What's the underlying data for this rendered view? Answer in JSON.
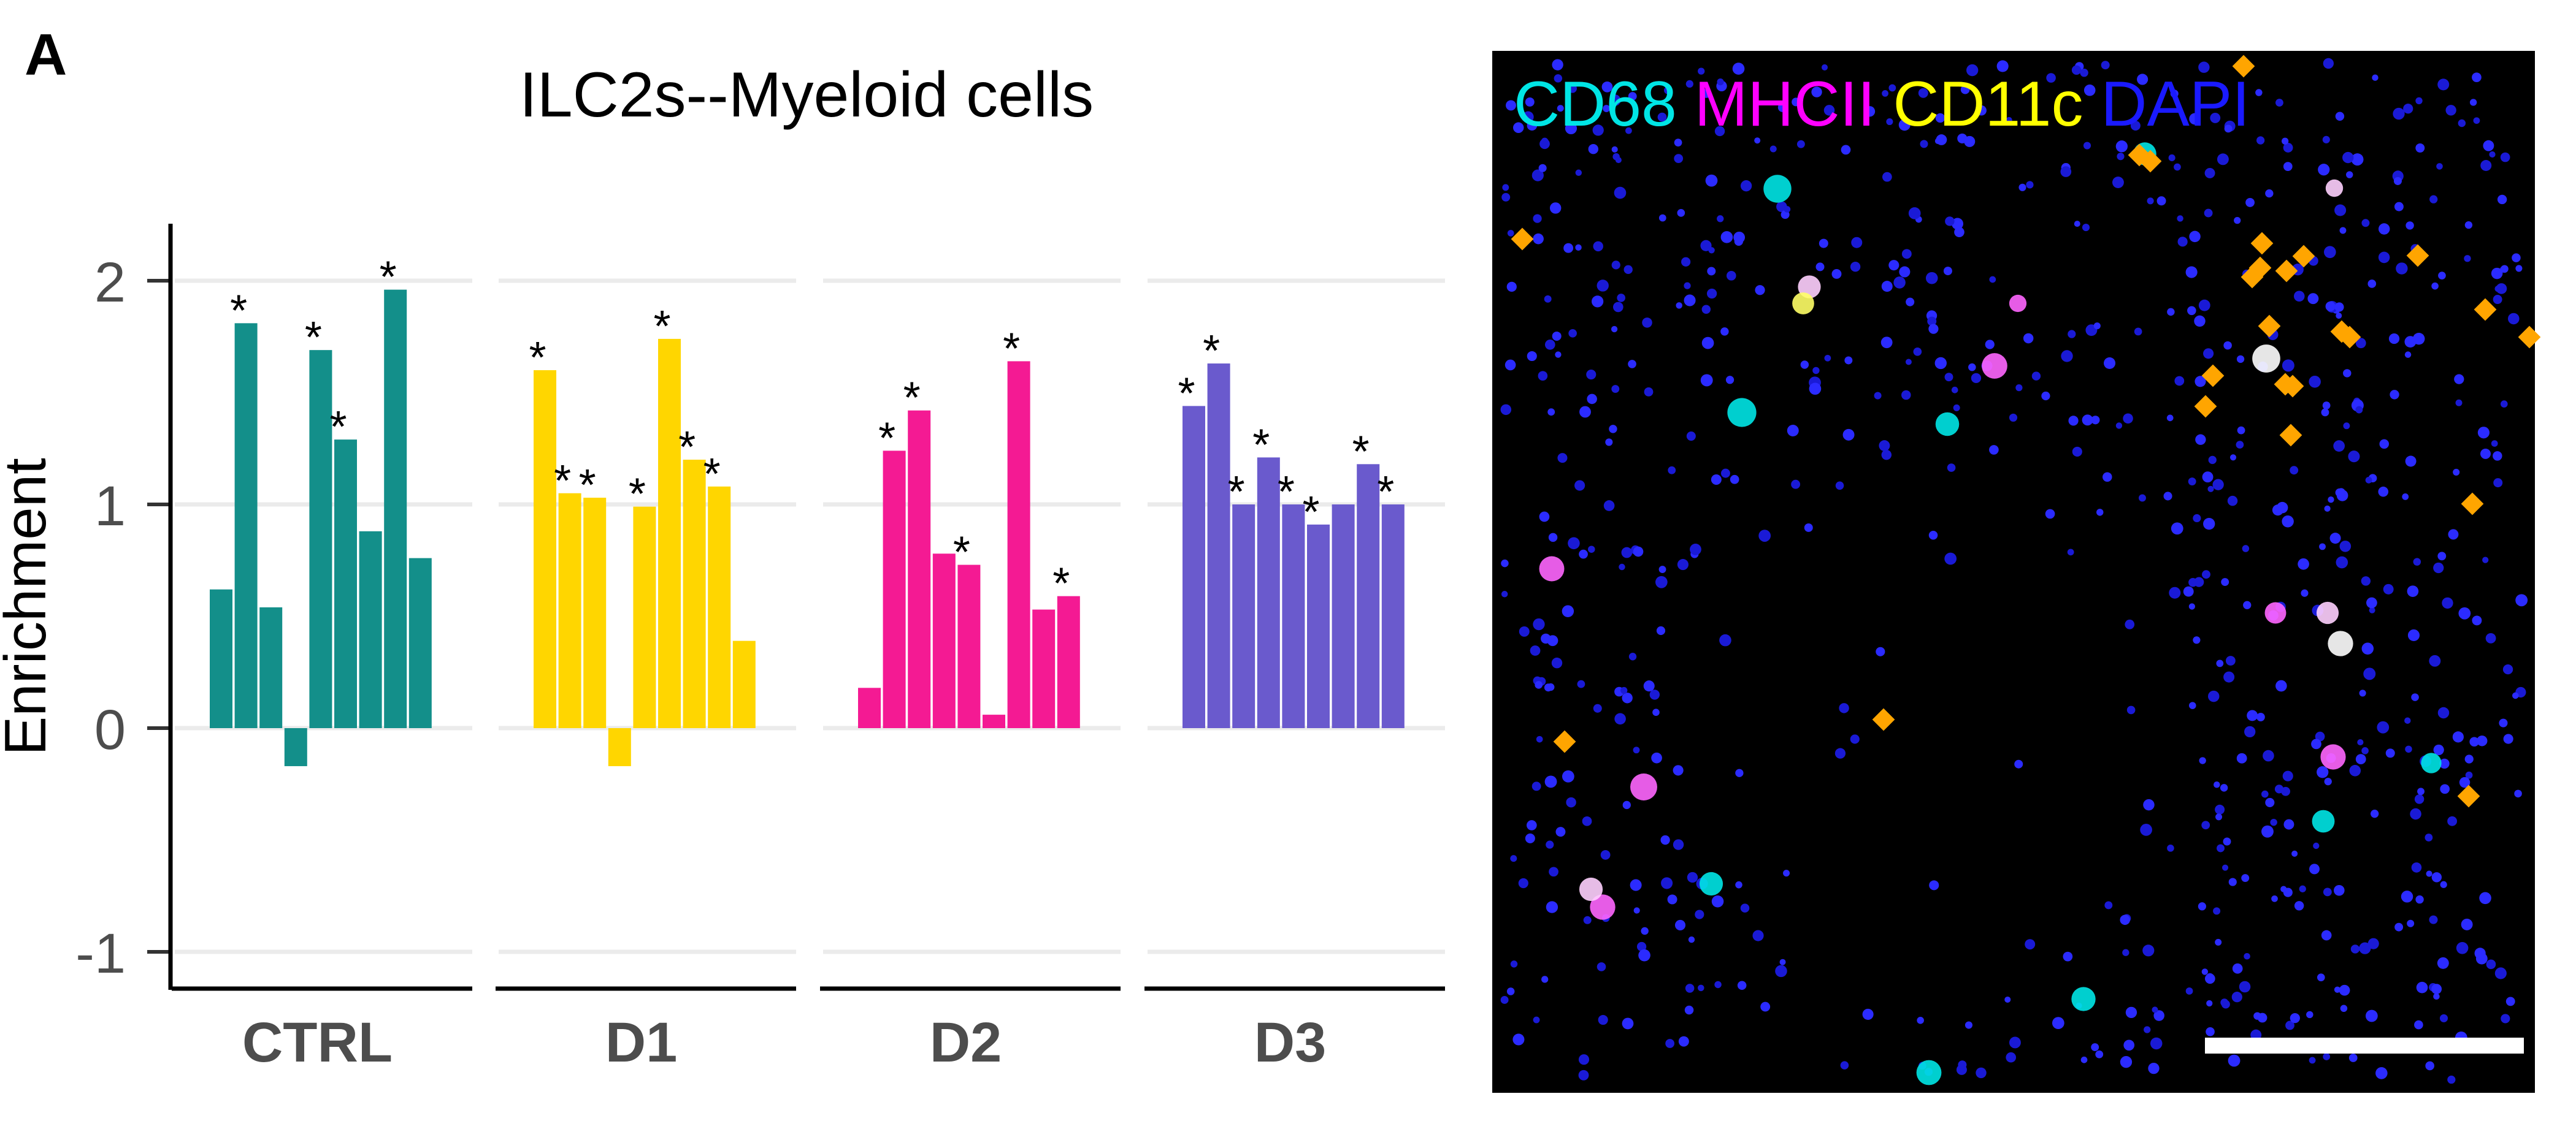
{
  "panel": {
    "label": "A"
  },
  "colors": {
    "CTRL": "#138f8a",
    "D1": "#ffd600",
    "D2": "#f41a93",
    "D3": "#6a5acd",
    "grid": "#ebebeb",
    "axis": "#000000",
    "tick_text": "#4d4d4d",
    "marker": "#ffa500",
    "micrograph_bg": "#000000"
  },
  "chart_data": {
    "type": "bar",
    "title": "ILC2s--Myeloid cells",
    "xlabel": "",
    "ylabel": "Enrichment",
    "ylim": [
      -1.2,
      2.25
    ],
    "yticks": [
      -1,
      0,
      1,
      2
    ],
    "ytick_labels": [
      "-1",
      "0",
      "1",
      "2"
    ],
    "grid": "horizontal major",
    "legend": "none",
    "facets": [
      {
        "name": "CTRL",
        "values": [
          0.62,
          1.81,
          0.54,
          -0.17,
          1.69,
          1.29,
          0.88,
          1.96,
          0.76
        ],
        "significant": [
          false,
          true,
          false,
          false,
          true,
          true,
          false,
          true,
          false
        ]
      },
      {
        "name": "D1",
        "values": [
          1.6,
          1.05,
          1.03,
          -0.17,
          0.99,
          1.74,
          1.2,
          1.08,
          0.39
        ],
        "significant": [
          true,
          true,
          true,
          false,
          true,
          true,
          true,
          true,
          false
        ]
      },
      {
        "name": "D2",
        "values": [
          0.18,
          1.24,
          1.42,
          0.78,
          0.73,
          0.06,
          1.64,
          0.53,
          0.59
        ],
        "significant": [
          false,
          true,
          true,
          false,
          true,
          false,
          true,
          false,
          true
        ]
      },
      {
        "name": "D3",
        "values": [
          1.44,
          1.63,
          1.0,
          1.21,
          1.0,
          0.91,
          1.0,
          1.18,
          1.0
        ],
        "significant": [
          true,
          true,
          true,
          true,
          true,
          true,
          false,
          true,
          true
        ]
      }
    ],
    "significance_marker": "*"
  },
  "micrograph": {
    "legend": [
      {
        "label": "CD68",
        "color": "#00e5e5"
      },
      {
        "label": "MHCII",
        "color": "#ff00ff"
      },
      {
        "label": "CD11c",
        "color": "#ffff00"
      },
      {
        "label": "DAPI",
        "color": "#1a1aff"
      }
    ],
    "marker_icon": "orange-diamond-icon",
    "scale_bar": "white-scale-bar"
  }
}
